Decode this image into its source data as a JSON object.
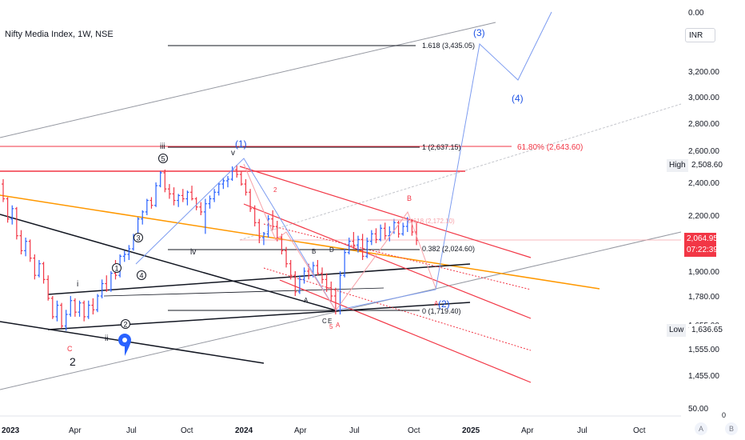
{
  "header": {
    "symbol_title": "Nifty Media Index, 1W, NSE",
    "currency": "INR"
  },
  "colors": {
    "up": "#2962ff",
    "down": "#f23645",
    "wave": "#1e53e5",
    "channel_red": "#f23645",
    "orange_line": "#ff9800",
    "black_line": "#131722",
    "gray_line": "#9598a1"
  },
  "chart_data": {
    "type": "candlestick",
    "title": "Nifty Media Index, 1W, NSE",
    "currency": "INR",
    "y_ticks": [
      "0.00",
      "3,200.00",
      "3,000.00",
      "2,800.00",
      "2,600.00",
      "2,400.00",
      "2,200.00",
      "1,900.00",
      "1,780.00",
      "1,655.00",
      "1,555.00",
      "1,455.00",
      "50.00"
    ],
    "x_ticks": [
      "2023",
      "Apr",
      "Jul",
      "Oct",
      "2024",
      "Apr",
      "Jul",
      "Oct",
      "2025",
      "Apr",
      "Jul",
      "Oct"
    ],
    "high": {
      "label": "High",
      "value": "2,508.60"
    },
    "low": {
      "label": "Low",
      "value": "1,636.65"
    },
    "last_price": {
      "value": "2,064.95",
      "countdown": "07:22:39"
    },
    "bottom_zero": "0",
    "buttons": {
      "a": "A",
      "b": "B"
    },
    "fib_levels": [
      {
        "label": "1.618 (3,435.05)",
        "price": 3435.05
      },
      {
        "label": "1 (2,637.15)",
        "price": 2637.15
      },
      {
        "label": "0.382 (2,024.60)",
        "price": 2024.6
      },
      {
        "label": "0 (1,719.40)",
        "price": 1719.4
      }
    ],
    "retracement_label": "61.80% (2,643.60)",
    "inner_fib_label": "0.618 (2,172.10)",
    "wave_labels": {
      "blue": [
        "(1)",
        "(2)",
        "(3)",
        "(4)"
      ],
      "black": [
        "iii",
        "v",
        "iv",
        "i",
        "ii",
        "2"
      ],
      "circled": [
        "5",
        "3",
        "1",
        "4",
        "2"
      ],
      "red": [
        "B",
        "C",
        "2",
        "A",
        "5",
        "A"
      ],
      "black_small": [
        "A",
        "B",
        "D",
        "C",
        "E"
      ]
    },
    "candles": [
      [
        2390,
        2420,
        2280,
        2300
      ],
      [
        2300,
        2310,
        2160,
        2180
      ],
      [
        2180,
        2260,
        2150,
        2240
      ],
      [
        2240,
        2250,
        2070,
        2090
      ],
      [
        2090,
        2120,
        1990,
        2010
      ],
      [
        2010,
        2080,
        1980,
        2060
      ],
      [
        2060,
        2070,
        1950,
        1970
      ],
      [
        1970,
        1990,
        1860,
        1880
      ],
      [
        1880,
        1960,
        1870,
        1940
      ],
      [
        1940,
        1950,
        1840,
        1860
      ],
      [
        1860,
        1880,
        1760,
        1770
      ],
      [
        1770,
        1780,
        1680,
        1690
      ],
      [
        1690,
        1760,
        1670,
        1740
      ],
      [
        1740,
        1750,
        1640,
        1650
      ],
      [
        1650,
        1720,
        1630,
        1700
      ],
      [
        1700,
        1780,
        1690,
        1760
      ],
      [
        1760,
        1770,
        1690,
        1710
      ],
      [
        1710,
        1760,
        1690,
        1750
      ],
      [
        1750,
        1760,
        1670,
        1690
      ],
      [
        1690,
        1760,
        1680,
        1740
      ],
      [
        1740,
        1770,
        1700,
        1720
      ],
      [
        1720,
        1790,
        1710,
        1780
      ],
      [
        1780,
        1860,
        1770,
        1840
      ],
      [
        1840,
        1880,
        1800,
        1810
      ],
      [
        1810,
        1900,
        1800,
        1890
      ],
      [
        1890,
        1960,
        1860,
        1880
      ],
      [
        1880,
        1990,
        1870,
        1980
      ],
      [
        1980,
        2010,
        1950,
        1990
      ],
      [
        1990,
        2040,
        1960,
        2020
      ],
      [
        2020,
        2100,
        2010,
        2090
      ],
      [
        2090,
        2190,
        2080,
        2180
      ],
      [
        2180,
        2230,
        2150,
        2220
      ],
      [
        2220,
        2300,
        2200,
        2290
      ],
      [
        2290,
        2310,
        2240,
        2260
      ],
      [
        2260,
        2400,
        2250,
        2380
      ],
      [
        2380,
        2470,
        2370,
        2460
      ],
      [
        2460,
        2480,
        2340,
        2360
      ],
      [
        2360,
        2390,
        2300,
        2330
      ],
      [
        2330,
        2370,
        2260,
        2290
      ],
      [
        2290,
        2330,
        2250,
        2320
      ],
      [
        2320,
        2360,
        2280,
        2300
      ],
      [
        2300,
        2350,
        2260,
        2340
      ],
      [
        2340,
        2380,
        2290,
        2300
      ],
      [
        2300,
        2310,
        2230,
        2250
      ],
      [
        2250,
        2280,
        2200,
        2220
      ],
      [
        2220,
        2300,
        2100,
        2270
      ],
      [
        2270,
        2320,
        2240,
        2300
      ],
      [
        2300,
        2360,
        2280,
        2340
      ],
      [
        2340,
        2400,
        2320,
        2390
      ],
      [
        2390,
        2430,
        2360,
        2410
      ],
      [
        2410,
        2440,
        2370,
        2420
      ],
      [
        2420,
        2500,
        2410,
        2480
      ],
      [
        2480,
        2510,
        2430,
        2450
      ],
      [
        2450,
        2470,
        2380,
        2390
      ],
      [
        2390,
        2420,
        2320,
        2340
      ],
      [
        2340,
        2360,
        2220,
        2240
      ],
      [
        2240,
        2260,
        2140,
        2160
      ],
      [
        2160,
        2180,
        2050,
        2080
      ],
      [
        2080,
        2110,
        2040,
        2100
      ],
      [
        2100,
        2200,
        2080,
        2180
      ],
      [
        2180,
        2230,
        2120,
        2140
      ],
      [
        2140,
        2170,
        2060,
        2080
      ],
      [
        2080,
        2100,
        1990,
        2010
      ],
      [
        2010,
        2030,
        1920,
        1940
      ],
      [
        1940,
        1960,
        1860,
        1880
      ],
      [
        1880,
        1900,
        1780,
        1800
      ],
      [
        1800,
        1880,
        1790,
        1860
      ],
      [
        1860,
        1920,
        1840,
        1900
      ],
      [
        1900,
        1940,
        1860,
        1880
      ],
      [
        1880,
        1950,
        1870,
        1930
      ],
      [
        1930,
        1960,
        1880,
        1890
      ],
      [
        1890,
        1920,
        1840,
        1860
      ],
      [
        1860,
        1890,
        1800,
        1820
      ],
      [
        1820,
        1850,
        1760,
        1780
      ],
      [
        1780,
        1820,
        1700,
        1720
      ],
      [
        1720,
        1900,
        1700,
        1880
      ],
      [
        1880,
        2020,
        1870,
        2000
      ],
      [
        2000,
        2080,
        1990,
        2060
      ],
      [
        2060,
        2110,
        2020,
        2040
      ],
      [
        2040,
        2090,
        2000,
        2070
      ],
      [
        2070,
        2100,
        1960,
        1980
      ],
      [
        1980,
        2080,
        1970,
        2060
      ],
      [
        2060,
        2120,
        2040,
        2100
      ],
      [
        2100,
        2130,
        2050,
        2070
      ],
      [
        2070,
        2150,
        2060,
        2130
      ],
      [
        2130,
        2160,
        2070,
        2090
      ],
      [
        2090,
        2140,
        2060,
        2110
      ],
      [
        2110,
        2180,
        2100,
        2160
      ],
      [
        2160,
        2170,
        2080,
        2100
      ],
      [
        2100,
        2160,
        2090,
        2140
      ],
      [
        2140,
        2190,
        2110,
        2170
      ],
      [
        2170,
        2180,
        2090,
        2110
      ],
      [
        2110,
        2160,
        2040,
        2065
      ]
    ]
  }
}
